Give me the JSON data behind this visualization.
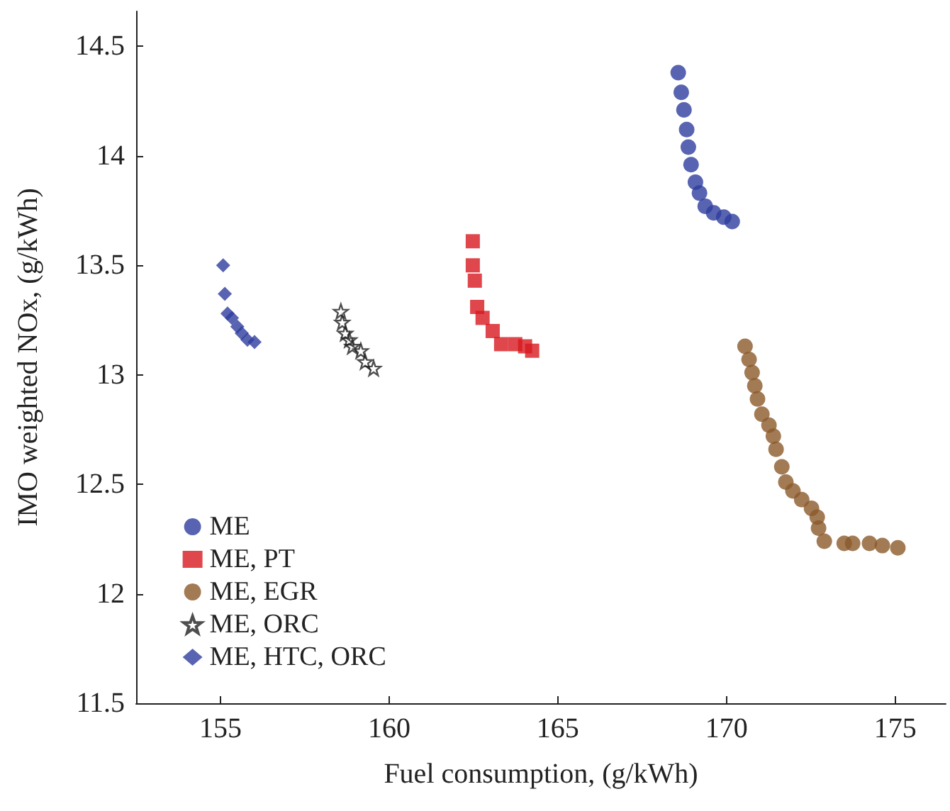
{
  "chart_data": {
    "type": "scatter",
    "xlabel": "Fuel consumption, (g/kWh)",
    "ylabel": "IMO weighted NOx, (g/kWh)",
    "xlim": [
      152.5,
      176.5
    ],
    "xticks": [
      155,
      160,
      165,
      170,
      175
    ],
    "ylim": [
      11.5,
      14.66
    ],
    "yticks": [
      11.5,
      12,
      12.5,
      13,
      13.5,
      14,
      14.5
    ],
    "grid": false,
    "legend": "bottom left",
    "series": [
      {
        "name": "ME",
        "color": "#2e3d9e",
        "marker": "circle",
        "x": [
          168.57,
          168.66,
          168.74,
          168.82,
          168.87,
          168.95,
          169.08,
          169.2,
          169.37,
          169.62,
          169.92,
          170.17
        ],
        "values": [
          14.38,
          14.29,
          14.21,
          14.12,
          14.04,
          13.96,
          13.88,
          13.83,
          13.77,
          13.74,
          13.72,
          13.7
        ]
      },
      {
        "name": "ME, PT",
        "color": "#d7191f",
        "marker": "square",
        "x": [
          162.48,
          162.48,
          162.54,
          162.61,
          162.77,
          163.07,
          163.32,
          163.74,
          164.03,
          164.24
        ],
        "values": [
          13.61,
          13.5,
          13.43,
          13.31,
          13.26,
          13.2,
          13.14,
          13.14,
          13.13,
          13.11
        ]
      },
      {
        "name": "ME, EGR",
        "color": "#8b5a2b",
        "marker": "circle",
        "x": [
          170.55,
          170.67,
          170.76,
          170.84,
          170.92,
          171.05,
          171.26,
          171.39,
          171.47,
          171.64,
          171.76,
          171.97,
          172.23,
          172.52,
          172.69,
          172.73,
          172.9,
          173.49,
          173.74,
          174.24,
          174.62,
          175.08
        ],
        "values": [
          13.13,
          13.07,
          13.01,
          12.95,
          12.89,
          12.82,
          12.77,
          12.72,
          12.66,
          12.58,
          12.51,
          12.47,
          12.43,
          12.39,
          12.35,
          12.3,
          12.24,
          12.23,
          12.23,
          12.23,
          12.22,
          12.21
        ]
      },
      {
        "name": "ME, ORC",
        "color": "#222222",
        "marker": "star",
        "x": [
          158.57,
          158.61,
          158.7,
          158.82,
          158.91,
          159.16,
          159.29,
          159.54
        ],
        "values": [
          13.29,
          13.24,
          13.19,
          13.16,
          13.13,
          13.11,
          13.06,
          13.03
        ]
      },
      {
        "name": "ME, HTC, ORC",
        "color": "#2e3d9e",
        "marker": "diamond",
        "x": [
          155.08,
          155.13,
          155.21,
          155.34,
          155.5,
          155.63,
          155.8,
          156.01
        ],
        "values": [
          13.5,
          13.37,
          13.28,
          13.26,
          13.22,
          13.19,
          13.16,
          13.15
        ]
      }
    ]
  }
}
